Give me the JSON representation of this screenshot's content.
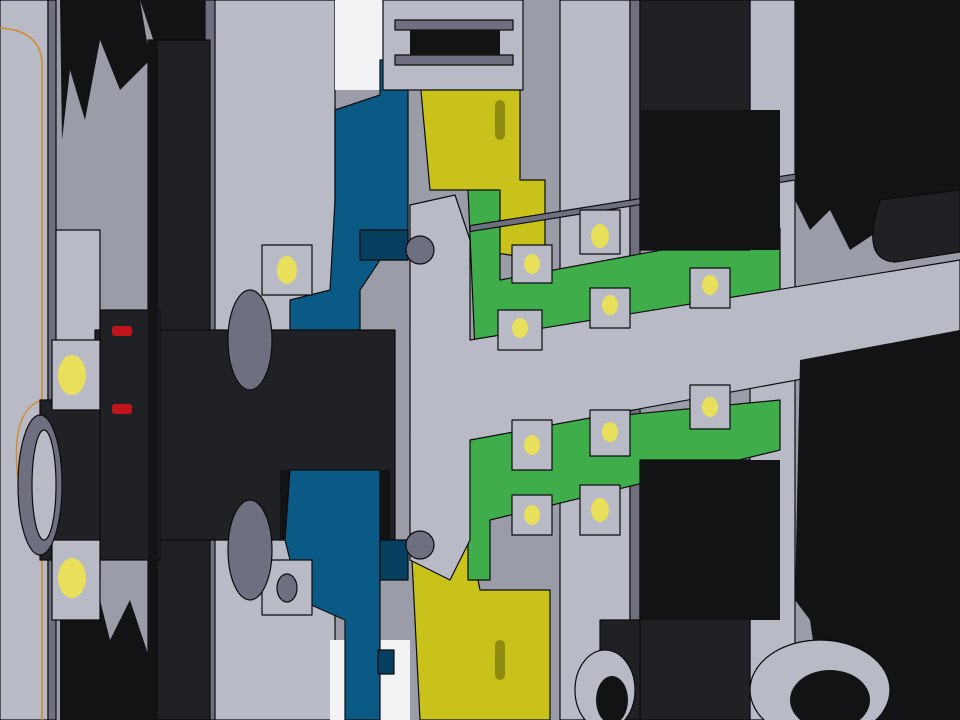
{
  "viewport": {
    "view_type": "cad-section-view",
    "colors": {
      "housing_gray": "#9a9ca8",
      "housing_light": "#b8bac6",
      "housing_dark": "#6e7080",
      "steel_black": "#202124",
      "steel_dark": "#121314",
      "carrier_blue": "#0b5a86",
      "carrier_blue_dark": "#073f60",
      "ring_yellow": "#c9c21a",
      "ring_yellow_dark": "#8f8a10",
      "sleeve_green": "#3fae4a",
      "sleeve_green_dark": "#27802f",
      "bearing_ball": "#e8df5a",
      "seal_red": "#c0161b",
      "edge_orange": "#d48a2a",
      "white_gap": "#f2f2f4"
    },
    "parts": [
      {
        "name": "input-shaft",
        "color_key": "steel_black"
      },
      {
        "name": "output-shaft",
        "color_key": "housing_light"
      },
      {
        "name": "planet-carrier",
        "color_key": "carrier_blue"
      },
      {
        "name": "ring-gear",
        "color_key": "ring_yellow"
      },
      {
        "name": "bearing-sleeve",
        "color_key": "sleeve_green"
      },
      {
        "name": "gear-housing",
        "color_key": "housing_gray"
      },
      {
        "name": "gear-teeth",
        "color_key": "steel_dark"
      }
    ]
  }
}
